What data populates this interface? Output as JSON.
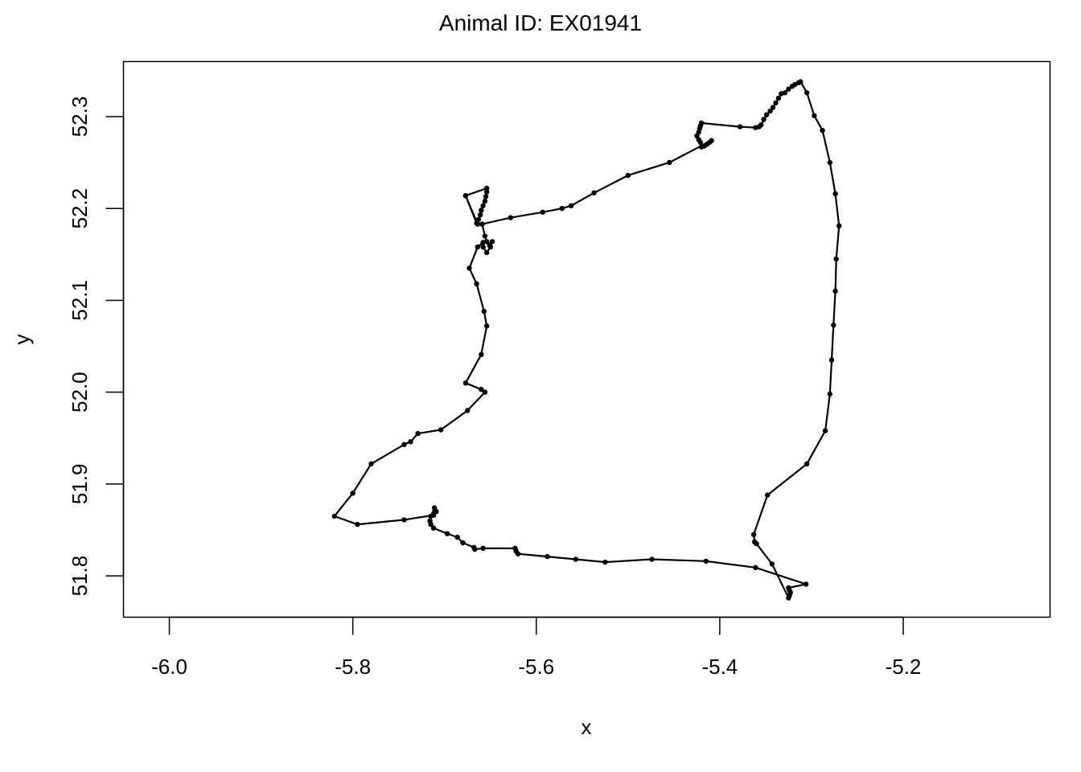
{
  "chart_data": {
    "type": "line",
    "title": "Animal ID: EX01941",
    "xlabel": "x",
    "ylabel": "y",
    "xlim": [
      -6.05,
      -5.04
    ],
    "ylim": [
      51.755,
      52.36
    ],
    "x_ticks": [
      -6.0,
      -5.8,
      -5.6,
      -5.4,
      -5.2
    ],
    "x_tick_labels": [
      "-6.0",
      "-5.8",
      "-5.6",
      "-5.4",
      "-5.2"
    ],
    "y_ticks": [
      51.8,
      51.9,
      52.0,
      52.1,
      52.2,
      52.3
    ],
    "y_tick_labels": [
      "51.8",
      "51.9",
      "52.0",
      "52.1",
      "52.2",
      "52.3"
    ],
    "grid": false,
    "legend": "none",
    "line_color": "#000000",
    "marker": "filled-circle",
    "series": [
      {
        "points": [
          [
            -5.677,
            52.214
          ],
          [
            -5.665,
            52.184
          ],
          [
            -5.663,
            52.188
          ],
          [
            -5.661,
            52.193
          ],
          [
            -5.66,
            52.198
          ],
          [
            -5.658,
            52.203
          ],
          [
            -5.656,
            52.208
          ],
          [
            -5.655,
            52.213
          ],
          [
            -5.654,
            52.218
          ],
          [
            -5.654,
            52.222
          ],
          [
            -5.677,
            52.214
          ],
          [
            -5.664,
            52.183
          ],
          [
            -5.659,
            52.183
          ],
          [
            -5.656,
            52.17
          ],
          [
            -5.654,
            52.164
          ],
          [
            -5.651,
            52.16
          ],
          [
            -5.648,
            52.164
          ],
          [
            -5.65,
            52.158
          ],
          [
            -5.654,
            52.152
          ],
          [
            -5.658,
            52.158
          ],
          [
            -5.658,
            52.163
          ],
          [
            -5.664,
            52.158
          ],
          [
            -5.673,
            52.135
          ],
          [
            -5.665,
            52.118
          ],
          [
            -5.657,
            52.088
          ],
          [
            -5.654,
            52.072
          ],
          [
            -5.66,
            52.041
          ],
          [
            -5.677,
            52.01
          ],
          [
            -5.66,
            52.003
          ],
          [
            -5.656,
            52.0
          ],
          [
            -5.675,
            51.98
          ],
          [
            -5.704,
            51.959
          ],
          [
            -5.729,
            51.955
          ],
          [
            -5.737,
            51.946
          ],
          [
            -5.744,
            51.943
          ],
          [
            -5.78,
            51.922
          ],
          [
            -5.8,
            51.89
          ],
          [
            -5.82,
            51.865
          ],
          [
            -5.795,
            51.856
          ],
          [
            -5.744,
            51.861
          ],
          [
            -5.712,
            51.866
          ],
          [
            -5.709,
            51.87
          ],
          [
            -5.711,
            51.874
          ],
          [
            -5.715,
            51.865
          ],
          [
            -5.716,
            51.86
          ],
          [
            -5.715,
            51.856
          ],
          [
            -5.712,
            51.852
          ],
          [
            -5.697,
            51.846
          ],
          [
            -5.686,
            51.842
          ],
          [
            -5.68,
            51.836
          ],
          [
            -5.668,
            51.831
          ],
          [
            -5.667,
            51.829
          ],
          [
            -5.658,
            51.83
          ],
          [
            -5.623,
            51.83
          ],
          [
            -5.622,
            51.827
          ],
          [
            -5.62,
            51.824
          ],
          [
            -5.588,
            51.821
          ],
          [
            -5.557,
            51.818
          ],
          [
            -5.525,
            51.815
          ],
          [
            -5.474,
            51.818
          ],
          [
            -5.415,
            51.816
          ],
          [
            -5.361,
            51.809
          ],
          [
            -5.306,
            51.791
          ],
          [
            -5.325,
            51.787
          ],
          [
            -5.324,
            51.784
          ],
          [
            -5.323,
            51.782
          ],
          [
            -5.324,
            51.779
          ],
          [
            -5.325,
            51.776
          ],
          [
            -5.343,
            51.813
          ],
          [
            -5.36,
            51.835
          ],
          [
            -5.362,
            51.837
          ],
          [
            -5.363,
            51.845
          ],
          [
            -5.348,
            51.888
          ],
          [
            -5.305,
            51.922
          ],
          [
            -5.285,
            51.958
          ],
          [
            -5.28,
            51.998
          ],
          [
            -5.278,
            52.035
          ],
          [
            -5.276,
            52.073
          ],
          [
            -5.274,
            52.11
          ],
          [
            -5.273,
            52.145
          ],
          [
            -5.27,
            52.181
          ],
          [
            -5.274,
            52.216
          ],
          [
            -5.28,
            52.25
          ],
          [
            -5.288,
            52.285
          ],
          [
            -5.297,
            52.301
          ],
          [
            -5.305,
            52.326
          ],
          [
            -5.312,
            52.338
          ],
          [
            -5.314,
            52.337
          ],
          [
            -5.318,
            52.335
          ],
          [
            -5.321,
            52.333
          ],
          [
            -5.325,
            52.33
          ],
          [
            -5.329,
            52.326
          ],
          [
            -5.333,
            52.325
          ],
          [
            -5.336,
            52.32
          ],
          [
            -5.339,
            52.315
          ],
          [
            -5.342,
            52.31
          ],
          [
            -5.345,
            52.306
          ],
          [
            -5.349,
            52.302
          ],
          [
            -5.352,
            52.297
          ],
          [
            -5.355,
            52.291
          ],
          [
            -5.357,
            52.289
          ],
          [
            -5.361,
            52.288
          ],
          [
            -5.378,
            52.289
          ],
          [
            -5.42,
            52.293
          ],
          [
            -5.421,
            52.29
          ],
          [
            -5.422,
            52.287
          ],
          [
            -5.423,
            52.283
          ],
          [
            -5.425,
            52.279
          ],
          [
            -5.423,
            52.275
          ],
          [
            -5.421,
            52.272
          ],
          [
            -5.42,
            52.267
          ],
          [
            -5.417,
            52.268
          ],
          [
            -5.414,
            52.27
          ],
          [
            -5.411,
            52.272
          ],
          [
            -5.409,
            52.274
          ],
          [
            -5.455,
            52.25
          ],
          [
            -5.5,
            52.236
          ],
          [
            -5.537,
            52.217
          ],
          [
            -5.562,
            52.203
          ],
          [
            -5.572,
            52.2
          ],
          [
            -5.593,
            52.196
          ],
          [
            -5.628,
            52.19
          ],
          [
            -5.659,
            52.183
          ]
        ]
      }
    ]
  }
}
